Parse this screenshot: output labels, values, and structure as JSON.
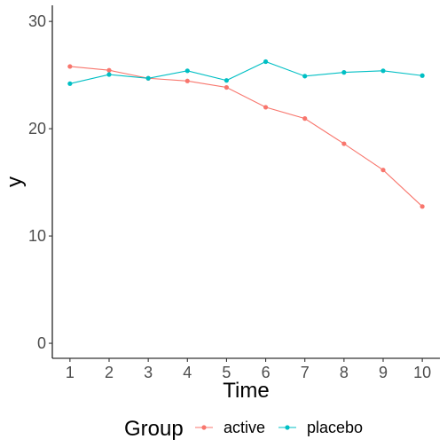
{
  "chart_data": {
    "type": "line",
    "xlabel": "Time",
    "ylabel": "y",
    "x": [
      1,
      2,
      3,
      4,
      5,
      6,
      7,
      8,
      9,
      10
    ],
    "xlim": [
      0.55,
      10.45
    ],
    "ylim": [
      -1.4,
      31.5
    ],
    "yticks": [
      0,
      10,
      20,
      30
    ],
    "grid": false,
    "legend": {
      "title": "Group",
      "position": "bottom"
    },
    "series": [
      {
        "name": "active",
        "color": "#F8766D",
        "values": [
          25.8,
          25.45,
          24.7,
          24.45,
          23.85,
          22.0,
          20.95,
          18.6,
          16.15,
          12.75
        ]
      },
      {
        "name": "placebo",
        "color": "#00BFC4",
        "values": [
          24.2,
          25.05,
          24.7,
          25.4,
          24.5,
          26.25,
          24.9,
          25.25,
          25.4,
          24.95
        ]
      }
    ]
  }
}
